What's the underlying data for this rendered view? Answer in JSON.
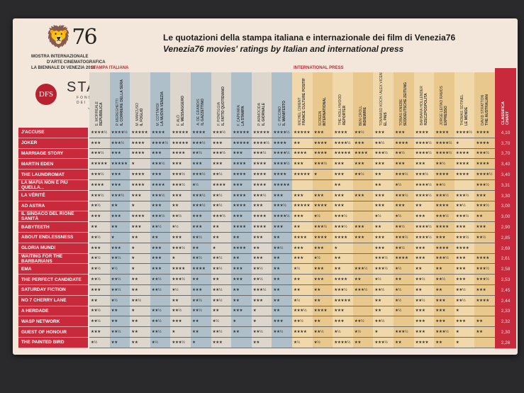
{
  "header": {
    "logo_number": "76",
    "festival_lines": [
      "MOSTRA INTERNAZIONALE",
      "D'ARTE CINEMATOGRAFICA",
      "LA BIENNALE DI VENEZIA 2019"
    ],
    "dfs": "DFS",
    "stars": "STARS",
    "fondaco": [
      "FONDACO",
      "DEI TEDESCHI",
      "VENEZIA"
    ],
    "title_it": "Le quotazioni della stampa italiana e internazionale dei film di Venezia76",
    "title_en": "Venezia76 movies' ratings by Italian and international press"
  },
  "sections": {
    "italian": "STAMPA ITALIANA",
    "international": "INTERNATIONAL PRESS"
  },
  "score_header": [
    "CLASSIFICA",
    "CHART"
  ],
  "critics": [
    {
      "name": "E. MORREALE",
      "outlet": "REPUBBLICA"
    },
    {
      "name": "P. MEREGHETTI",
      "outlet": "IL CORRIERE DELLA SERA"
    },
    {
      "name": "M. MANCUSO",
      "outlet": "IL FOGLIO"
    },
    {
      "name": "M. COTTARDI",
      "outlet": "LA NUOVA VENEZIA"
    },
    {
      "name": "F. ALÒ",
      "outlet": "IL MESSAGGERO"
    },
    {
      "name": "A. DE GRANDIS",
      "outlet": "IL GAZZETTINO"
    },
    {
      "name": "F. PONTIGGIA",
      "outlet": "IL FATTO QUOTIDIANO"
    },
    {
      "name": "F. CAPRARA",
      "outlet": "LA STAMPA"
    },
    {
      "name": "P. ARMOCIDA",
      "outlet": "IL GIORNALE"
    },
    {
      "name": "C. PICCINO",
      "outlet": "IL MANIFESTO"
    },
    {
      "name": "MICHEL CIMENT",
      "outlet": "FRANCE CULTURE POSITIF"
    },
    {
      "name": "SCREEN",
      "outlet": "INTERNATIONAL"
    },
    {
      "name": "THE HOLLYWOOD",
      "outlet": "REPORTER"
    },
    {
      "name": "BEN CROLL",
      "outlet": "INDIEWIRE"
    },
    {
      "name": "TOMMASO KOCH / ALEX VICENTE",
      "outlet": "EL PAIS"
    },
    {
      "name": "TOBIAS KNIEBE",
      "outlet": "SÜDDEUTSCHE ZEITUNG"
    },
    {
      "name": "BARBARA HOLLENDER",
      "outlet": "RZECZPOSPOLITA"
    },
    {
      "name": "JORGE LEITAO RAMOS",
      "outlet": "EXPRESSO"
    },
    {
      "name": "THOMAS SOTINEL",
      "outlet": "LE MONDE"
    },
    {
      "name": "DAVID STRATTON",
      "outlet": "THE AUSTRALIAN"
    }
  ],
  "films": [
    {
      "title": "J'ACCUSE",
      "score": "4,10",
      "ratings": [
        "★★★★½",
        "★★★★½",
        "★★★★★",
        "★★★★",
        "★★★★★",
        "★★★★",
        "★★★½",
        "★★★★★",
        "★★★★★",
        "★★★★½",
        "★★★★★",
        "★★★",
        "★★★★",
        "★★½",
        "★★★",
        "★★★",
        "★★★★",
        "★★★★",
        "★★★★½",
        "★★★★"
      ]
    },
    {
      "title": "JOKER",
      "score": "3,70",
      "ratings": [
        "★★★",
        "★★★½",
        "★★★★",
        "★★★★½",
        "★★★★★",
        "★★★½",
        "★★★",
        "★★★★★",
        "★★★★½",
        "★★★★",
        "★★",
        "★★★★",
        "★★★★½",
        "★★★",
        "★★½",
        "★★★★",
        "★★★★½",
        "★★★★½",
        "★",
        "★★★★"
      ]
    },
    {
      "title": "MARRIAGE STORY",
      "score": "3,70",
      "ratings": [
        "★★★½",
        "★★★",
        "★★★★",
        "★★★",
        "★★★★",
        "★★½",
        "★★★½",
        "★★★",
        "★★★½",
        "★★★★½",
        "★★★★",
        "★★★★",
        "★★★★★",
        "★★★★",
        "★★★½",
        "★★½",
        "★★★★½",
        "★★★★½",
        "★★★★",
        "★★★½"
      ]
    },
    {
      "title": "MARTIN EDEN",
      "score": "3,40",
      "ratings": [
        "★★★★★",
        "★★★★★",
        "★",
        "★★★½",
        "★★★",
        "★★★",
        "★★★",
        "★★★★",
        "★★★★",
        "★★★★½",
        "★★★",
        "★★★½",
        "★★★",
        "★★★",
        "★★★",
        "★★★",
        "★★★",
        "★★½",
        "★★★★",
        "★★★★"
      ]
    },
    {
      "title": "THE LAUNDROMAT",
      "score": "3,40",
      "ratings": [
        "★★★½",
        "★★★",
        "★★★★",
        "★★★",
        "★★★½",
        "★★★½",
        "★★½",
        "★★★★",
        "★★★★",
        "★★★★",
        "★★★★★",
        "★",
        "★★★",
        "★★½",
        "★★",
        "★★★½",
        "★★★½",
        "★★★★",
        "★★★★",
        "★★★★½"
      ]
    },
    {
      "title": "LA MAFIA NON È PIÙ QUELLA...",
      "score": "3,31",
      "ratings": [
        "★★★★",
        "★★★",
        "★★★★",
        "★★★★",
        "★★★½",
        "★½",
        "★★★★",
        "★★★",
        "★★★★",
        "★★★★★",
        "",
        "",
        "★★",
        "",
        "★★",
        "★½",
        "★★★★½",
        "★★½",
        "",
        "★★★½"
      ]
    },
    {
      "title": "LA VÉRITÉ",
      "score": "3,30",
      "ratings": [
        "★★★½",
        "★★★½",
        "★★★",
        "★★★½",
        "★★★",
        "★★★½",
        "★★½",
        "★★★★",
        "★★★½",
        "★★★",
        "★★★",
        "★★★",
        "★★★",
        "★★★",
        "★★★",
        "★★★½",
        "★★★★½",
        "★★★½",
        "★★★½",
        "★★★"
      ]
    },
    {
      "title": "AD ASTRA",
      "score": "3,00",
      "ratings": [
        "★★½",
        "★★",
        "★",
        "★★★",
        "★★",
        "★★★½",
        "★★½",
        "★★★★",
        "★★★",
        "★★★½",
        "★★★★★",
        "★★★★",
        "★★★",
        "",
        "★★★",
        "★★★",
        "★★",
        "★★★★",
        "★★½",
        "★★★½"
      ]
    },
    {
      "title": "IL SINDACO DEL RIONE SANITÀ",
      "score": "3,00",
      "ratings": [
        "★★★",
        "★★★",
        "★★★★",
        "★★★½",
        "★★½",
        "★★★",
        "★★★½",
        "★★★",
        "★★★★",
        "★★★★½",
        "★★★",
        "★½",
        "★★★½",
        "",
        "★½",
        "★½",
        "★★★",
        "★★★½",
        "★★★½",
        "★★"
      ]
    },
    {
      "title": "BABYTEETH",
      "score": "2,90",
      "ratings": [
        "★★",
        "★★",
        "★★★",
        "★★½",
        "★½",
        "★★★",
        "★★",
        "★★★★",
        "★★★★",
        "★★★",
        "★★",
        "★★★½",
        "★★★½",
        "★★★",
        "★★",
        "★★½",
        "★★★★½",
        "★★★★",
        "★★★",
        "★★★"
      ]
    },
    {
      "title": "ABOUT ENDLESSNESS",
      "score": "2,85",
      "ratings": [
        "★★½",
        "★",
        "★★",
        "★★",
        "★★★",
        "★★½",
        "★★",
        "★★",
        "★★★",
        "★★",
        "★★★★",
        "★★★★",
        "★★★★",
        "★★★",
        "★★★",
        "★★★½",
        "★★★★½",
        "★★★",
        "★★★½",
        "★★½"
      ]
    },
    {
      "title": "GLORIA MUNDI",
      "score": "2,69",
      "ratings": [
        "★★★",
        "★★★",
        "★",
        "★★★",
        "★★★½",
        "★★",
        "★",
        "★★★★",
        "★★",
        "★★½",
        "★★★",
        "★★★",
        "★",
        "",
        "★★★",
        "★★½",
        "★★★",
        "★★★★",
        "★★★★",
        ""
      ]
    },
    {
      "title": "WAITING FOR THE BARBARIANS",
      "score": "2,61",
      "ratings": [
        "★★½",
        "★★½",
        "★",
        "★★★",
        "★",
        "★★½",
        "★★½",
        "★★",
        "★★★",
        "★★",
        "★★★",
        "★½",
        "★★",
        "",
        "★★★½",
        "★★★★",
        "★★★",
        "★★★½",
        "★★★",
        "★★★★"
      ]
    },
    {
      "title": "EMA",
      "score": "2,58",
      "ratings": [
        "★★½",
        "★½",
        "★",
        "★★★",
        "★★★★",
        "★★★★",
        "★★½",
        "★★★",
        "★★½",
        "★★",
        "★½",
        "★★★",
        "★★",
        "★★★½",
        "★★★½",
        "★½",
        "★★",
        "★★",
        "★★★",
        "★★★½"
      ]
    },
    {
      "title": "THE PERFECT CANDIDATE",
      "score": "2,53",
      "ratings": [
        "★★½",
        "★★½",
        "★★",
        "★★½",
        "★★★½",
        "★★",
        "★★",
        "★★★",
        "★★½",
        "★★",
        "★★",
        "★★★",
        "★★★★",
        "★★",
        "★½",
        "★★",
        "★★½",
        "★★½",
        "★★★",
        "★★★½"
      ]
    },
    {
      "title": "SATURDAY FICTION",
      "score": "2,45",
      "ratings": [
        "★★★",
        "★★½",
        "★★",
        "★★½",
        "★½",
        "★★★",
        "★★½",
        "★★",
        "★★★½",
        "★★",
        "★★",
        "★★",
        "★★★½",
        "★★★½",
        "★★½",
        "★½",
        "★★",
        "★★",
        "★★½",
        "★★★"
      ]
    },
    {
      "title": "NO 7 CHERRY LANE",
      "score": "2,44",
      "ratings": [
        "★★",
        "★½",
        "★★½",
        "",
        "★★",
        "★★½",
        "★★½",
        "★★",
        "★★★",
        "★★",
        "★½",
        "★★",
        "★★★★★",
        "",
        "★★",
        "★½",
        "★★½",
        "★★★",
        "★★½",
        "★★★★"
      ]
    },
    {
      "title": "A HERDADE",
      "score": "2,33",
      "ratings": [
        "★★½",
        "★★",
        "★",
        "★★½",
        "★★½",
        "★★½",
        "★★",
        "★★★",
        "★",
        "★★",
        "★★★½",
        "★★★★",
        "★★★",
        "",
        "★★",
        "★½",
        "★★★",
        "★★★",
        "★",
        ""
      ]
    },
    {
      "title": "WASP NETWORK",
      "score": "2,32",
      "ratings": [
        "★★½",
        "★★",
        "★★",
        "★★½",
        "★★★",
        "★★",
        "★½",
        "★",
        "★",
        "★★★",
        "★★½",
        "★★",
        "★★★",
        "★★½",
        "★★½",
        "",
        "★★★",
        "★★★",
        "★★★",
        "★★"
      ]
    },
    {
      "title": "GUEST OF HONOUR",
      "score": "2,30",
      "ratings": [
        "★★★",
        "★★½",
        "★★",
        "★★½",
        "★",
        "★★",
        "★★½",
        "★★",
        "★★½",
        "★★½",
        "★★★★",
        "★★½",
        "★½",
        "★½",
        "★",
        "★★★½",
        "★★★",
        "★★★½",
        "★",
        "★★"
      ]
    },
    {
      "title": "THE PAINTED BIRD",
      "score": "2,26",
      "ratings": [
        "★½",
        "★★",
        "★★",
        "★½",
        "★★★½",
        "★",
        "★★★",
        "",
        "★★",
        "",
        "★½",
        "★½",
        "★★★★½",
        "★★",
        "★★★½",
        "★★",
        "★★★★",
        "★★",
        "★",
        ""
      ]
    }
  ]
}
